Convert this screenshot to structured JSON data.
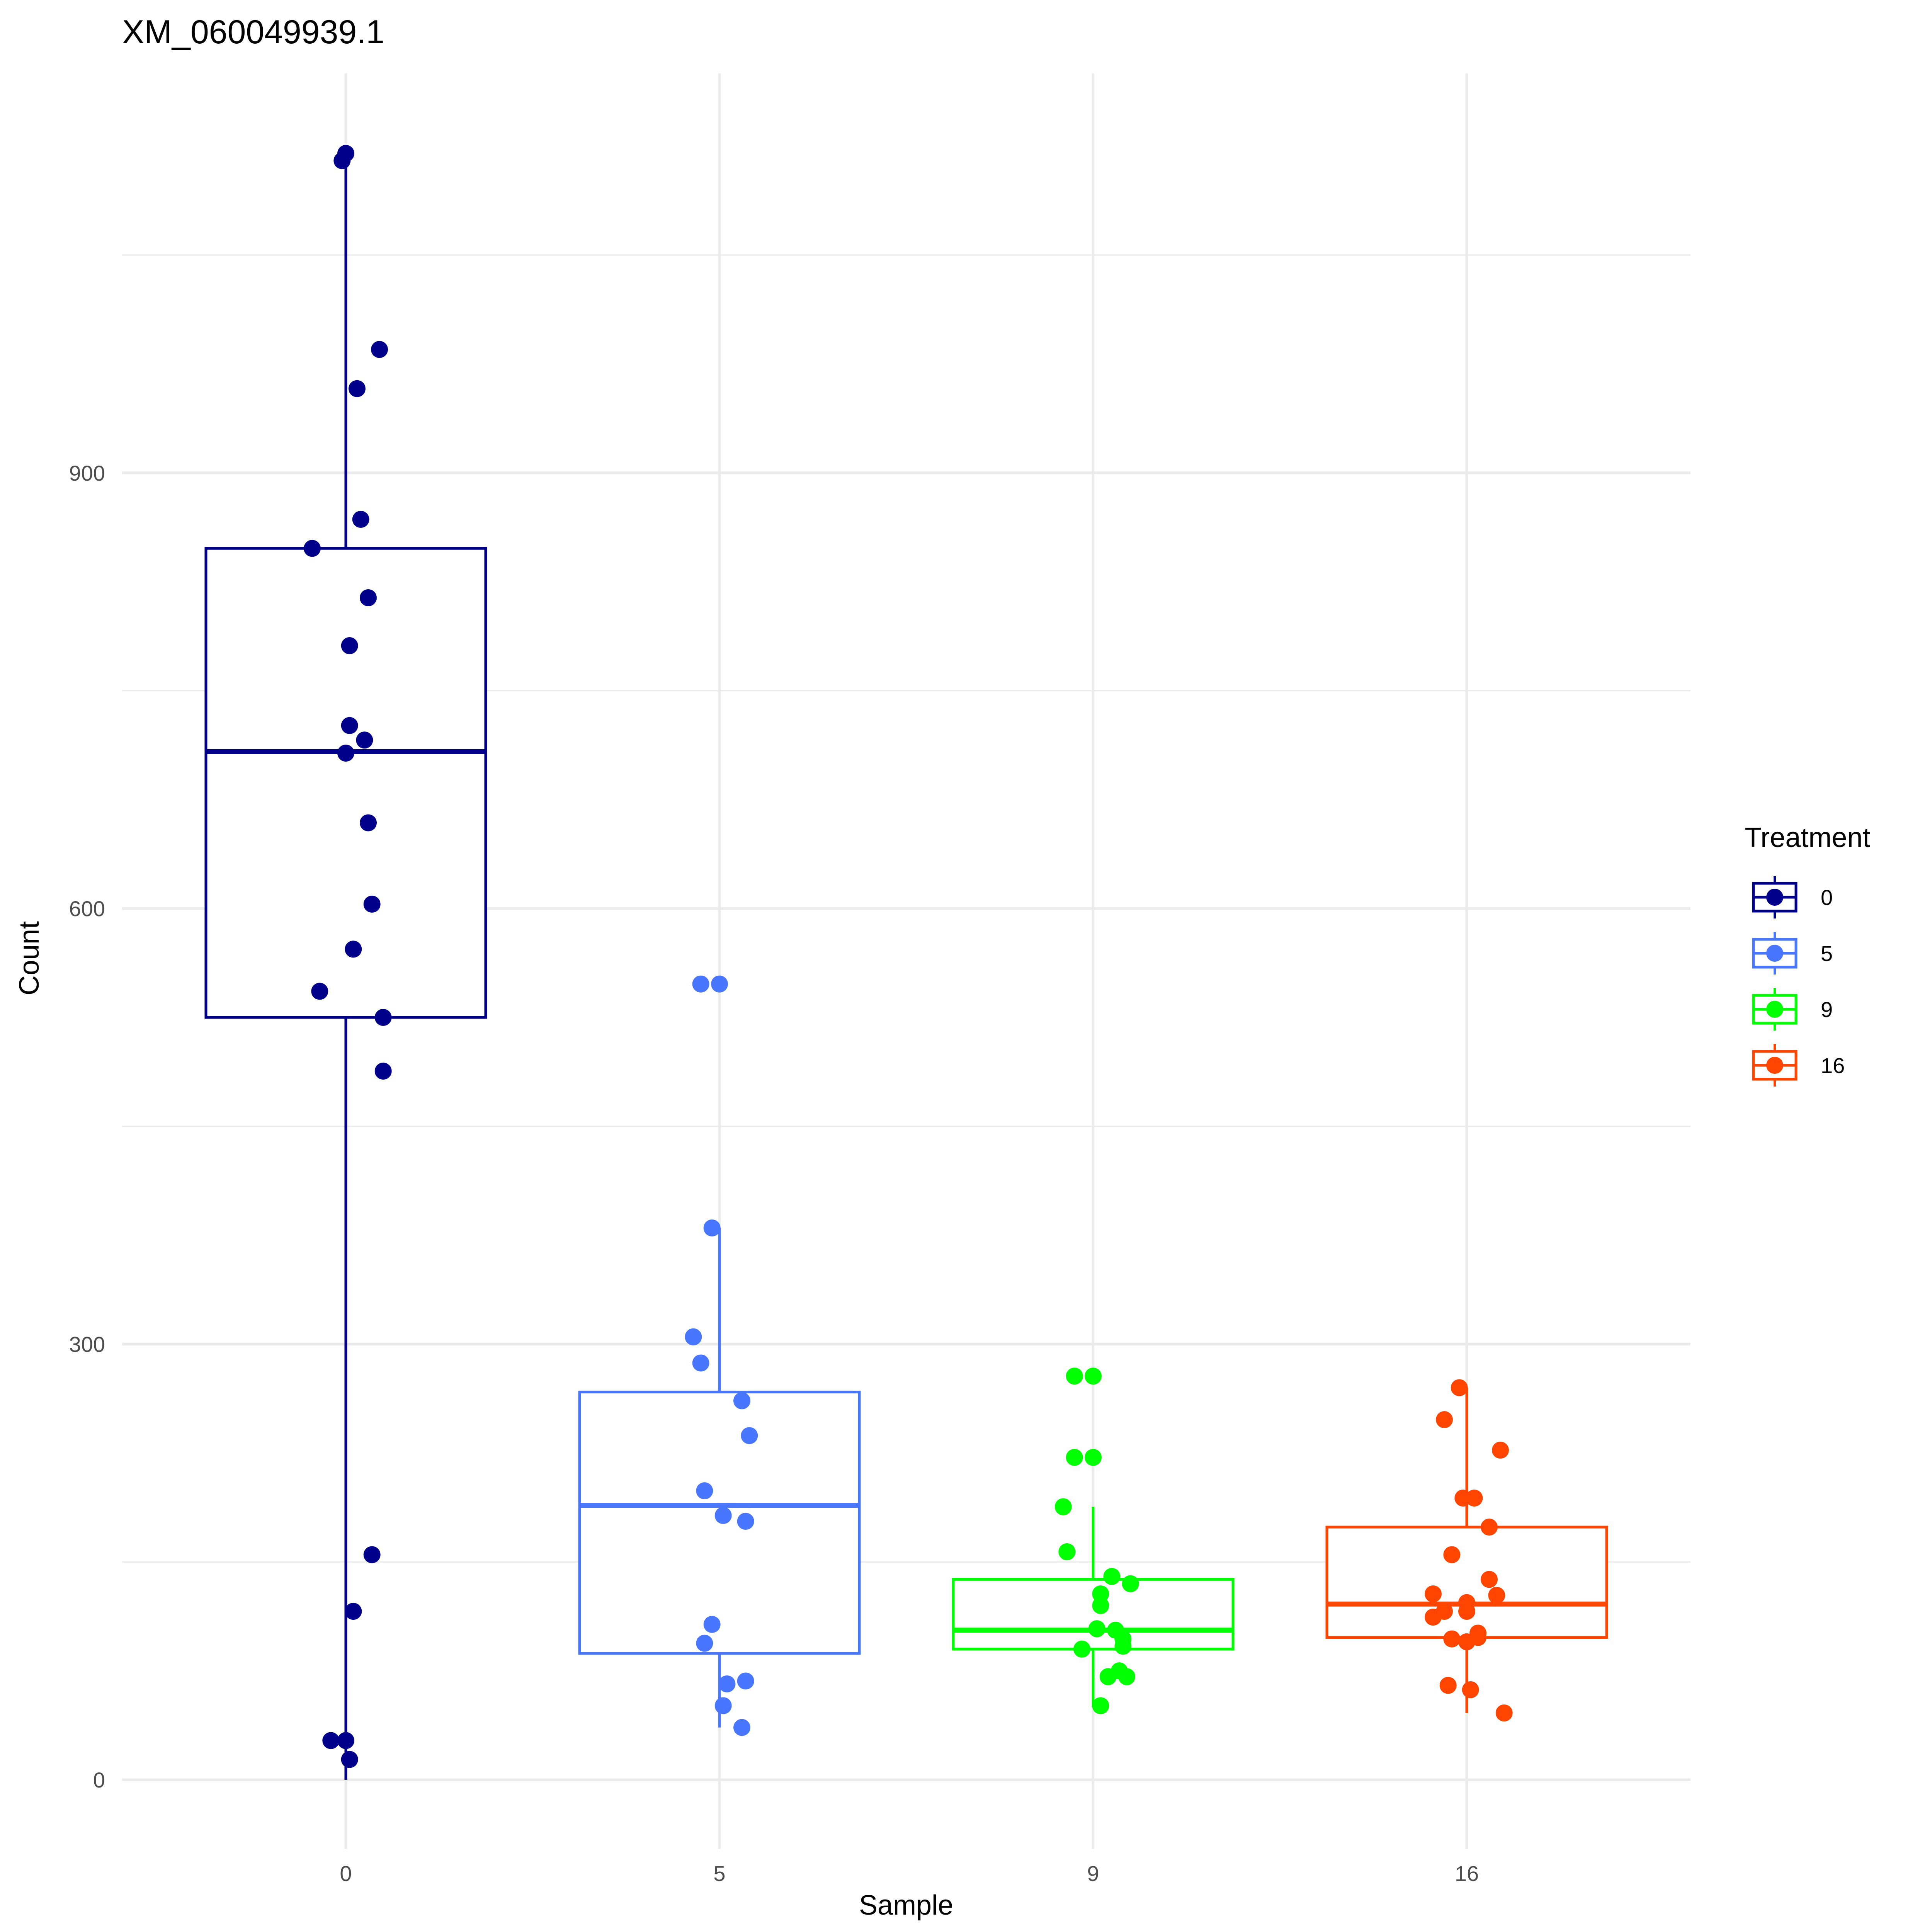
{
  "chart_data": {
    "type": "box",
    "title": "XM_060049939.1",
    "xlabel": "Sample",
    "ylabel": "Count",
    "ylim": [
      -45,
      1190
    ],
    "y_ticks": [
      0,
      300,
      600,
      900
    ],
    "y_tick_labels": [
      "0",
      "300",
      "600",
      "900"
    ],
    "categories": [
      "0",
      "5",
      "9",
      "16"
    ],
    "legend": {
      "title": "Treatment",
      "position": "right",
      "entries": [
        {
          "label": "0",
          "color": "#00008B"
        },
        {
          "label": "5",
          "color": "#4876FF"
        },
        {
          "label": "9",
          "color": "#00FF00"
        },
        {
          "label": "16",
          "color": "#FF4500"
        }
      ]
    },
    "series": [
      {
        "name": "0",
        "color": "#00008B",
        "box": {
          "lower_whisker": 0,
          "q1": 525,
          "median": 708,
          "q3": 848,
          "upper_whisker": 1115
        },
        "points": [
          {
            "jitter": -0.01,
            "y": 1115
          },
          {
            "jitter": 0.0,
            "y": 1120
          },
          {
            "jitter": 0.09,
            "y": 985
          },
          {
            "jitter": 0.03,
            "y": 958
          },
          {
            "jitter": 0.04,
            "y": 868
          },
          {
            "jitter": -0.09,
            "y": 848
          },
          {
            "jitter": 0.06,
            "y": 814
          },
          {
            "jitter": 0.01,
            "y": 781
          },
          {
            "jitter": 0.01,
            "y": 726
          },
          {
            "jitter": 0.05,
            "y": 716
          },
          {
            "jitter": 0.0,
            "y": 707
          },
          {
            "jitter": 0.06,
            "y": 659
          },
          {
            "jitter": 0.07,
            "y": 603
          },
          {
            "jitter": 0.02,
            "y": 572
          },
          {
            "jitter": -0.07,
            "y": 543
          },
          {
            "jitter": 0.1,
            "y": 525
          },
          {
            "jitter": 0.1,
            "y": 488
          },
          {
            "jitter": 0.07,
            "y": 155
          },
          {
            "jitter": 0.02,
            "y": 116
          },
          {
            "jitter": -0.04,
            "y": 27
          },
          {
            "jitter": 0.0,
            "y": 27
          },
          {
            "jitter": 0.01,
            "y": 14
          },
          {
            "jitter": 0.01,
            "y": 14
          }
        ]
      },
      {
        "name": "5",
        "color": "#4876FF",
        "box": {
          "lower_whisker": 36,
          "q1": 87,
          "median": 189,
          "q3": 267,
          "upper_whisker": 380
        },
        "points": [
          {
            "jitter": -0.05,
            "y": 548
          },
          {
            "jitter": 0.0,
            "y": 548
          },
          {
            "jitter": -0.02,
            "y": 380
          },
          {
            "jitter": -0.07,
            "y": 305
          },
          {
            "jitter": -0.05,
            "y": 287
          },
          {
            "jitter": 0.06,
            "y": 261
          },
          {
            "jitter": 0.06,
            "y": 261
          },
          {
            "jitter": 0.08,
            "y": 237
          },
          {
            "jitter": -0.04,
            "y": 199
          },
          {
            "jitter": 0.01,
            "y": 182
          },
          {
            "jitter": 0.07,
            "y": 178
          },
          {
            "jitter": -0.02,
            "y": 107
          },
          {
            "jitter": -0.04,
            "y": 94
          },
          {
            "jitter": 0.02,
            "y": 66
          },
          {
            "jitter": 0.07,
            "y": 68
          },
          {
            "jitter": 0.01,
            "y": 51
          },
          {
            "jitter": 0.06,
            "y": 36
          }
        ]
      },
      {
        "name": "9",
        "color": "#00FF00",
        "box": {
          "lower_whisker": 50,
          "q1": 90,
          "median": 103,
          "q3": 138,
          "upper_whisker": 188
        },
        "points": [
          {
            "jitter": -0.05,
            "y": 278
          },
          {
            "jitter": 0.0,
            "y": 278
          },
          {
            "jitter": -0.05,
            "y": 222
          },
          {
            "jitter": 0.0,
            "y": 222
          },
          {
            "jitter": -0.08,
            "y": 188
          },
          {
            "jitter": -0.07,
            "y": 157
          },
          {
            "jitter": 0.05,
            "y": 140
          },
          {
            "jitter": 0.1,
            "y": 135
          },
          {
            "jitter": 0.02,
            "y": 128
          },
          {
            "jitter": 0.02,
            "y": 120
          },
          {
            "jitter": 0.01,
            "y": 104
          },
          {
            "jitter": 0.06,
            "y": 103
          },
          {
            "jitter": 0.08,
            "y": 97
          },
          {
            "jitter": 0.08,
            "y": 92
          },
          {
            "jitter": -0.03,
            "y": 90
          },
          {
            "jitter": 0.07,
            "y": 75
          },
          {
            "jitter": 0.04,
            "y": 71
          },
          {
            "jitter": 0.09,
            "y": 71
          },
          {
            "jitter": 0.02,
            "y": 51
          }
        ]
      },
      {
        "name": "16",
        "color": "#FF4500",
        "box": {
          "lower_whisker": 46,
          "q1": 98,
          "median": 121,
          "q3": 174,
          "upper_whisker": 270
        },
        "points": [
          {
            "jitter": -0.02,
            "y": 270
          },
          {
            "jitter": -0.06,
            "y": 248
          },
          {
            "jitter": 0.09,
            "y": 227
          },
          {
            "jitter": -0.01,
            "y": 194
          },
          {
            "jitter": 0.02,
            "y": 194
          },
          {
            "jitter": 0.06,
            "y": 174
          },
          {
            "jitter": -0.04,
            "y": 155
          },
          {
            "jitter": 0.06,
            "y": 138
          },
          {
            "jitter": -0.09,
            "y": 128
          },
          {
            "jitter": 0.08,
            "y": 127
          },
          {
            "jitter": 0.0,
            "y": 122
          },
          {
            "jitter": -0.06,
            "y": 116
          },
          {
            "jitter": 0.0,
            "y": 116
          },
          {
            "jitter": -0.09,
            "y": 112
          },
          {
            "jitter": 0.03,
            "y": 101
          },
          {
            "jitter": 0.03,
            "y": 98
          },
          {
            "jitter": -0.04,
            "y": 97
          },
          {
            "jitter": 0.0,
            "y": 95
          },
          {
            "jitter": -0.05,
            "y": 65
          },
          {
            "jitter": 0.01,
            "y": 62
          },
          {
            "jitter": 0.1,
            "y": 46
          }
        ]
      }
    ]
  }
}
